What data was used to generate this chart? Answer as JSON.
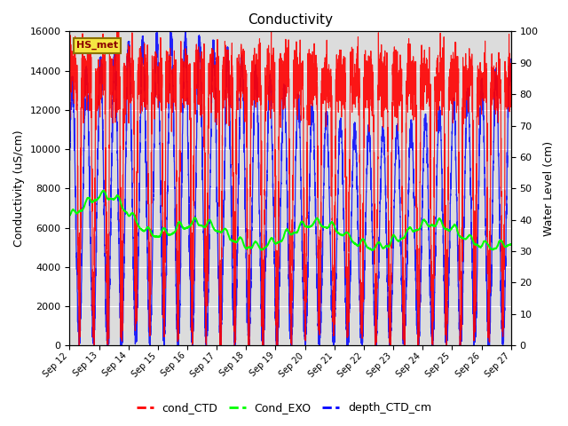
{
  "title": "Conductivity",
  "ylabel_left": "Conductivity (uS/cm)",
  "ylabel_right": "Water Level (cm)",
  "ylim_left": [
    0,
    16000
  ],
  "ylim_right": [
    0,
    100
  ],
  "yticks_left": [
    0,
    2000,
    4000,
    6000,
    8000,
    10000,
    12000,
    14000,
    16000
  ],
  "yticks_right": [
    0,
    10,
    20,
    30,
    40,
    50,
    60,
    70,
    80,
    90,
    100
  ],
  "xlim_days": [
    0,
    15
  ],
  "n_days": 15,
  "xtick_positions_days": [
    0,
    1,
    2,
    3,
    4,
    5,
    6,
    7,
    8,
    9,
    10,
    11,
    12,
    13,
    14,
    15
  ],
  "xtick_labels": [
    "Sep 12",
    "Sep 13",
    "Sep 14",
    "Sep 15",
    "Sep 16",
    "Sep 17",
    "Sep 18",
    "Sep 19",
    "Sep 20",
    "Sep 21",
    "Sep 22",
    "Sep 23",
    "Sep 24",
    "Sep 25",
    "Sep 26",
    "Sep 27"
  ],
  "legend_labels": [
    "cond_CTD",
    "Cond_EXO",
    "depth_CTD_cm"
  ],
  "legend_colors": [
    "red",
    "lime",
    "blue"
  ],
  "station_label": "HS_met",
  "background_color": "#dcdcdc",
  "line_colors": {
    "cond_CTD": "red",
    "Cond_EXO": "lime",
    "depth_CTD_cm": "blue"
  },
  "tidal_period_days": 0.52,
  "tidal_period_depth_days": 0.48,
  "seed": 7
}
